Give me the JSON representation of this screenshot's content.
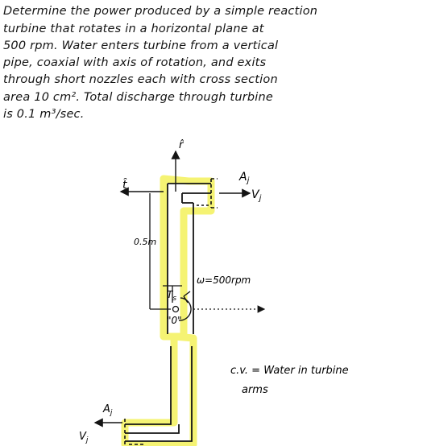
{
  "problem": {
    "lines": [
      "Determine the power produced by a simple reaction",
      "turbine that rotates in a horizontal plane at",
      "500 rpm.  Water enters turbine from a vertical",
      "pipe, coaxial with axis of rotation, and exits",
      "through short nozzles each with cross section",
      "area   10 cm².  Total discharge through turbine",
      "is  0.1 m³/sec."
    ]
  },
  "figure": {
    "r_hat": "r̂",
    "t_hat": "t̂",
    "A_top": "A",
    "A_top_sub": "j",
    "V_top": "V",
    "V_top_sub": "j",
    "radius": "0.5m",
    "omega": "ω=500rpm",
    "torque": "T",
    "torque_sub": "s",
    "origin": "\"0\"",
    "cv_line1": "c.v. = Water  in  turbine",
    "cv_line2": "arms",
    "A_bottom": "A",
    "A_bottom_sub": "j",
    "V_bottom": "V",
    "V_bottom_sub": "j"
  },
  "colors": {
    "ink": "#141414",
    "highlight": "#f4f264"
  }
}
